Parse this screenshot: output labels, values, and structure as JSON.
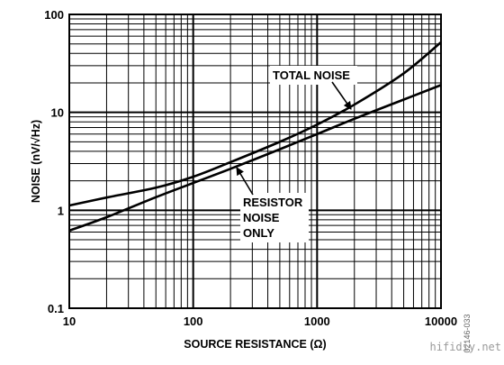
{
  "chart_data": {
    "type": "line",
    "title": "",
    "xlabel": "SOURCE RESISTANCE (Ω)",
    "ylabel": "NOISE (nV/√Hz)",
    "x_scale": "log",
    "y_scale": "log",
    "xlim": [
      10,
      10000
    ],
    "ylim": [
      0.1,
      100
    ],
    "x_ticks": [
      "10",
      "100",
      "1000",
      "10000"
    ],
    "y_ticks": [
      "0.1",
      "1",
      "10",
      "100"
    ],
    "grid": true,
    "series": [
      {
        "name": "TOTAL NOISE",
        "x": [
          10,
          20,
          50,
          100,
          200,
          500,
          1000,
          2000,
          5000,
          10000
        ],
        "y": [
          1.12,
          1.35,
          1.7,
          2.2,
          3.1,
          5.0,
          7.5,
          12.0,
          25.0,
          52.0
        ]
      },
      {
        "name": "RESISTOR NOISE ONLY",
        "x": [
          10,
          20,
          50,
          100,
          200,
          500,
          1000,
          2000,
          5000,
          10000
        ],
        "y": [
          0.62,
          0.85,
          1.36,
          1.9,
          2.65,
          4.2,
          6.0,
          8.6,
          13.5,
          19.0
        ]
      }
    ],
    "annotations": [
      {
        "lines": [
          "TOTAL NOISE"
        ],
        "series": "TOTAL NOISE"
      },
      {
        "lines": [
          "RESISTOR",
          "NOISE",
          "ONLY"
        ],
        "series": "RESISTOR NOISE ONLY"
      }
    ]
  },
  "figure_code": "02146-033",
  "watermark": "hifidiy.net",
  "colors": {
    "line": "#000000",
    "grid": "#000000",
    "background": "#ffffff"
  }
}
